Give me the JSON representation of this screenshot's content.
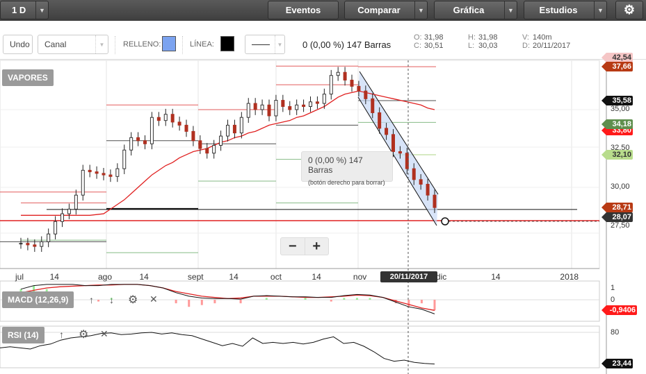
{
  "topbar": {
    "period": "1 D",
    "events": "Eventos",
    "compare": "Comparar",
    "chart": "Gráfica",
    "studies": "Estudios",
    "settings_icon": "gear-icon"
  },
  "toolbar": {
    "undo": "Undo",
    "tool": "Canal",
    "fill_label": "RELLENO:",
    "fill_color": "#7ba3f0",
    "line_label": "LÍNEA:",
    "line_color": "#000000",
    "measure": "0 (0,00 %) 147 Barras",
    "ohlc": {
      "o_label": "O:",
      "o": "31,98",
      "c_label": "C:",
      "c": "30,51",
      "h_label": "H:",
      "h": "31,98",
      "l_label": "L:",
      "l": "30,03",
      "v_label": "V:",
      "v": "140m",
      "d_label": "D:",
      "d": "20/11/2017"
    }
  },
  "main": {
    "symbol": "VAPORES",
    "tooltip_line1": "0 (0,00 %) 147 Barras",
    "tooltip_line2": "(botón derecho para borrar)",
    "zoom_out": "−",
    "zoom_in": "+"
  },
  "price_tags": [
    {
      "text": "42,54",
      "color": "#f5c6c6",
      "fg": "#333",
      "price": 38.35
    },
    {
      "text": "37,66",
      "color": "#b83a14",
      "fg": "#fff",
      "price": 37.76
    },
    {
      "text": "35,58",
      "color": "#111111",
      "fg": "#fff",
      "price": 35.58
    },
    {
      "text": "33,80",
      "color": "#ff1a1a",
      "fg": "#fff",
      "price": 33.65
    },
    {
      "text": "34,18",
      "color": "#5f8f4e",
      "fg": "#fff",
      "price": 34.05
    },
    {
      "text": "32,10",
      "color": "#b8dc8c",
      "fg": "#333",
      "price": 32.1
    },
    {
      "text": "28,71",
      "color": "#b83a14",
      "fg": "#fff",
      "price": 28.71
    },
    {
      "text": "28,07",
      "color": "#333333",
      "fg": "#fff",
      "price": 28.07
    }
  ],
  "price_axis": [
    "35,00",
    "32,50",
    "30,00",
    "27,50"
  ],
  "time_axis": [
    {
      "t": "jul",
      "i": 0
    },
    {
      "t": "14",
      "i": 5
    },
    {
      "t": "ago",
      "i": 12
    },
    {
      "t": "14",
      "i": 18
    },
    {
      "t": "sept",
      "i": 25
    },
    {
      "t": "14",
      "i": 31
    },
    {
      "t": "oct",
      "i": 37
    },
    {
      "t": "14",
      "i": 43
    },
    {
      "t": "nov",
      "i": 49
    },
    {
      "t": "dic",
      "i": 61
    },
    {
      "t": "14",
      "i": 69
    },
    {
      "t": "2018",
      "i": 79
    }
  ],
  "crosshair_date": "20/11/2017",
  "macd": {
    "label": "MACD (12,26,9)",
    "axis": [
      "1",
      "0"
    ],
    "value": "-0,9406"
  },
  "rsi": {
    "label": "RSI (14)",
    "axis": [
      "80"
    ],
    "value": "23,44"
  },
  "chart_data": {
    "type": "candlestick",
    "closes": [
      26.4,
      26.3,
      26.2,
      26.5,
      27.0,
      27.8,
      28.3,
      28.6,
      29.5,
      31.1,
      31.0,
      30.9,
      30.8,
      30.7,
      31.2,
      32.4,
      33.2,
      33.0,
      32.8,
      34.5,
      34.3,
      34.7,
      34.2,
      34.0,
      33.6,
      33.0,
      32.5,
      32.2,
      32.7,
      33.3,
      34.0,
      33.5,
      34.5,
      35.4,
      35.0,
      35.3,
      34.6,
      35.6,
      35.2,
      35.0,
      35.3,
      35.2,
      35.5,
      35.4,
      36.0,
      37.2,
      37.4,
      36.9,
      36.5,
      36.2,
      35.7,
      34.8,
      33.8,
      33.4,
      32.3,
      32.2,
      31.2,
      30.5,
      30.2,
      29.5,
      28.7
    ],
    "ma": [
      28.2,
      28.2,
      28.2,
      28.2,
      28.2,
      28.2,
      28.2,
      28.2,
      28.2,
      28.2,
      28.2,
      28.25,
      28.3,
      28.6,
      28.9,
      29.2,
      29.6,
      30.0,
      30.4,
      30.8,
      31.1,
      31.4,
      31.6,
      31.9,
      32.1,
      32.3,
      32.4,
      32.5,
      32.7,
      32.9,
      33.0,
      33.2,
      33.3,
      33.5,
      33.6,
      33.8,
      34.0,
      34.1,
      34.2,
      34.3,
      34.5,
      34.6,
      34.8,
      35.0,
      35.2,
      35.5,
      35.8,
      36.0,
      36.1,
      36.2,
      36.1,
      36.0,
      35.9,
      35.8,
      35.7,
      35.6,
      35.5,
      35.4,
      35.3,
      35.1,
      35.0
    ],
    "hline_black": 28.71,
    "hline_red": 28.07,
    "macd_line": [
      0.9,
      1.2,
      1.3,
      1.3,
      1.3,
      1.2,
      1.2,
      1.3,
      1.3,
      1.3,
      1.2,
      1.0,
      0.6,
      0.3,
      0.15,
      0.1,
      0.1,
      0.05,
      0.3,
      0.35,
      0.3,
      0.25,
      0.25,
      0.2,
      0.2,
      0.35,
      0.45,
      0.4,
      0.2,
      -0.2,
      -0.6,
      -0.8,
      -1.2
    ],
    "signal_line": [
      0.6,
      0.8,
      1.0,
      1.1,
      1.15,
      1.2,
      1.25,
      1.25,
      1.3,
      1.3,
      1.2,
      1.0,
      0.7,
      0.5,
      0.3,
      0.2,
      0.1,
      0.15,
      0.3,
      0.3,
      0.3,
      0.25,
      0.2,
      0.2,
      0.25,
      0.3,
      0.4,
      0.35,
      0.2,
      -0.1,
      -0.4,
      -0.7,
      -0.9
    ],
    "rsi_values": [
      52,
      54,
      52,
      50,
      56,
      59,
      66,
      70,
      72,
      74,
      78,
      79,
      76,
      77,
      79,
      80,
      77,
      79,
      76,
      74,
      68,
      62,
      56,
      60,
      55,
      70,
      60,
      62,
      60,
      62,
      59,
      62,
      68,
      72,
      60,
      62,
      55,
      45,
      33,
      28,
      30,
      26,
      24,
      23
    ]
  }
}
